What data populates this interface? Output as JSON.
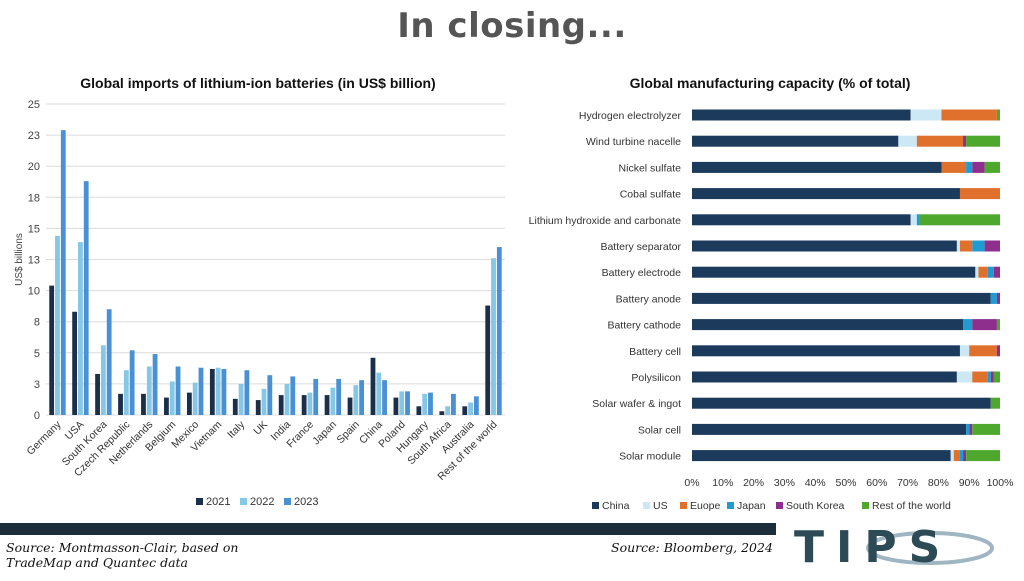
{
  "slide": {
    "title": "In closing..."
  },
  "source_left": [
    "Source: Montmasson-Clair, based on",
    "TradeMap and Quantec data"
  ],
  "source_right": "Source: Bloomberg, 2024",
  "logo": {
    "text": "TIPS",
    "colors": {
      "dark": "#2d4a57",
      "accent": "#5b8fa8"
    }
  },
  "chart_data": [
    {
      "type": "bar",
      "title": "Global imports of lithium-ion batteries (in US$ billion)",
      "ylabel": "US$ billions",
      "ylim": [
        0,
        25
      ],
      "yticks": [
        0,
        3,
        5,
        8,
        10,
        13,
        15,
        18,
        20,
        23,
        25
      ],
      "ytick_values": [
        0,
        2.5,
        5,
        7.5,
        10,
        12.5,
        15,
        17.5,
        20,
        22.5,
        25
      ],
      "categories": [
        "Germany",
        "USA",
        "South Korea",
        "Czech Republic",
        "Netherlands",
        "Belgium",
        "Mexico",
        "Vietnam",
        "Italy",
        "UK",
        "India",
        "France",
        "Japan",
        "Spain",
        "China",
        "Poland",
        "Hungary",
        "South Africa",
        "Australia",
        "Rest of the world"
      ],
      "series": [
        {
          "name": "2021",
          "color": "#1b2f4a",
          "values": [
            10.4,
            8.3,
            3.3,
            1.7,
            1.7,
            1.4,
            1.8,
            3.7,
            1.3,
            1.2,
            1.6,
            1.6,
            1.6,
            1.4,
            4.6,
            1.4,
            0.7,
            0.3,
            0.7,
            8.8
          ]
        },
        {
          "name": "2022",
          "color": "#84c7e6",
          "values": [
            14.4,
            13.9,
            5.6,
            3.6,
            3.9,
            2.7,
            2.6,
            3.8,
            2.5,
            2.1,
            2.5,
            1.8,
            2.2,
            2.4,
            3.4,
            1.9,
            1.7,
            0.7,
            1.0,
            12.6
          ]
        },
        {
          "name": "2023",
          "color": "#4a90d4",
          "values": [
            22.9,
            18.8,
            8.5,
            5.2,
            4.9,
            3.9,
            3.8,
            3.7,
            3.6,
            3.2,
            3.1,
            2.9,
            2.9,
            2.8,
            2.8,
            1.9,
            1.8,
            1.7,
            1.5,
            13.5
          ]
        }
      ],
      "legend": "bottom",
      "grid": true
    },
    {
      "type": "bar",
      "orientation": "horizontal",
      "stacked": true,
      "title": "Global manufacturing capacity (% of total)",
      "xlim": [
        0,
        100
      ],
      "xticks": [
        "0%",
        "10%",
        "20%",
        "30%",
        "40%",
        "50%",
        "60%",
        "70%",
        "80%",
        "90%",
        "100%"
      ],
      "categories": [
        "Hydrogen electrolyzer",
        "Wind turbine nacelle",
        "Nickel sulfate",
        "Cobal sulfate",
        "Lithium hydroxide and carbonate",
        "Battery separator",
        "Battery electrode",
        "Battery anode",
        "Battery cathode",
        "Battery cell",
        "Polysilicon",
        "Solar wafer & ingot",
        "Solar cell",
        "Solar module"
      ],
      "series": [
        {
          "name": "China",
          "color": "#1b3a5c",
          "values": [
            71,
            67,
            81,
            87,
            71,
            86,
            92,
            97,
            88,
            87,
            86,
            97,
            89,
            84
          ]
        },
        {
          "name": "US",
          "color": "#cde8f5",
          "values": [
            10,
            6,
            0,
            0,
            2,
            1,
            1,
            0,
            0,
            3,
            5,
            0,
            0,
            1
          ]
        },
        {
          "name": "Euope",
          "color": "#e0712d",
          "values": [
            18,
            15,
            8,
            13,
            0,
            4,
            3,
            0,
            0,
            9,
            5,
            0,
            0,
            2
          ]
        },
        {
          "name": "Japan",
          "color": "#1f9bd1",
          "values": [
            0,
            0,
            2,
            0,
            1,
            4,
            2,
            2,
            3,
            0,
            1,
            0,
            1,
            1
          ]
        },
        {
          "name": "South Korea",
          "color": "#8e2f8e",
          "values": [
            0,
            1,
            4,
            0,
            0,
            5,
            2,
            1,
            8,
            1,
            1,
            0,
            1,
            1
          ]
        },
        {
          "name": "Rest of the world",
          "color": "#4ea82e",
          "values": [
            1,
            11,
            5,
            0,
            26,
            0,
            0,
            0,
            1,
            0,
            2,
            3,
            9,
            11
          ]
        }
      ],
      "legend": "bottom",
      "grid": false
    }
  ]
}
